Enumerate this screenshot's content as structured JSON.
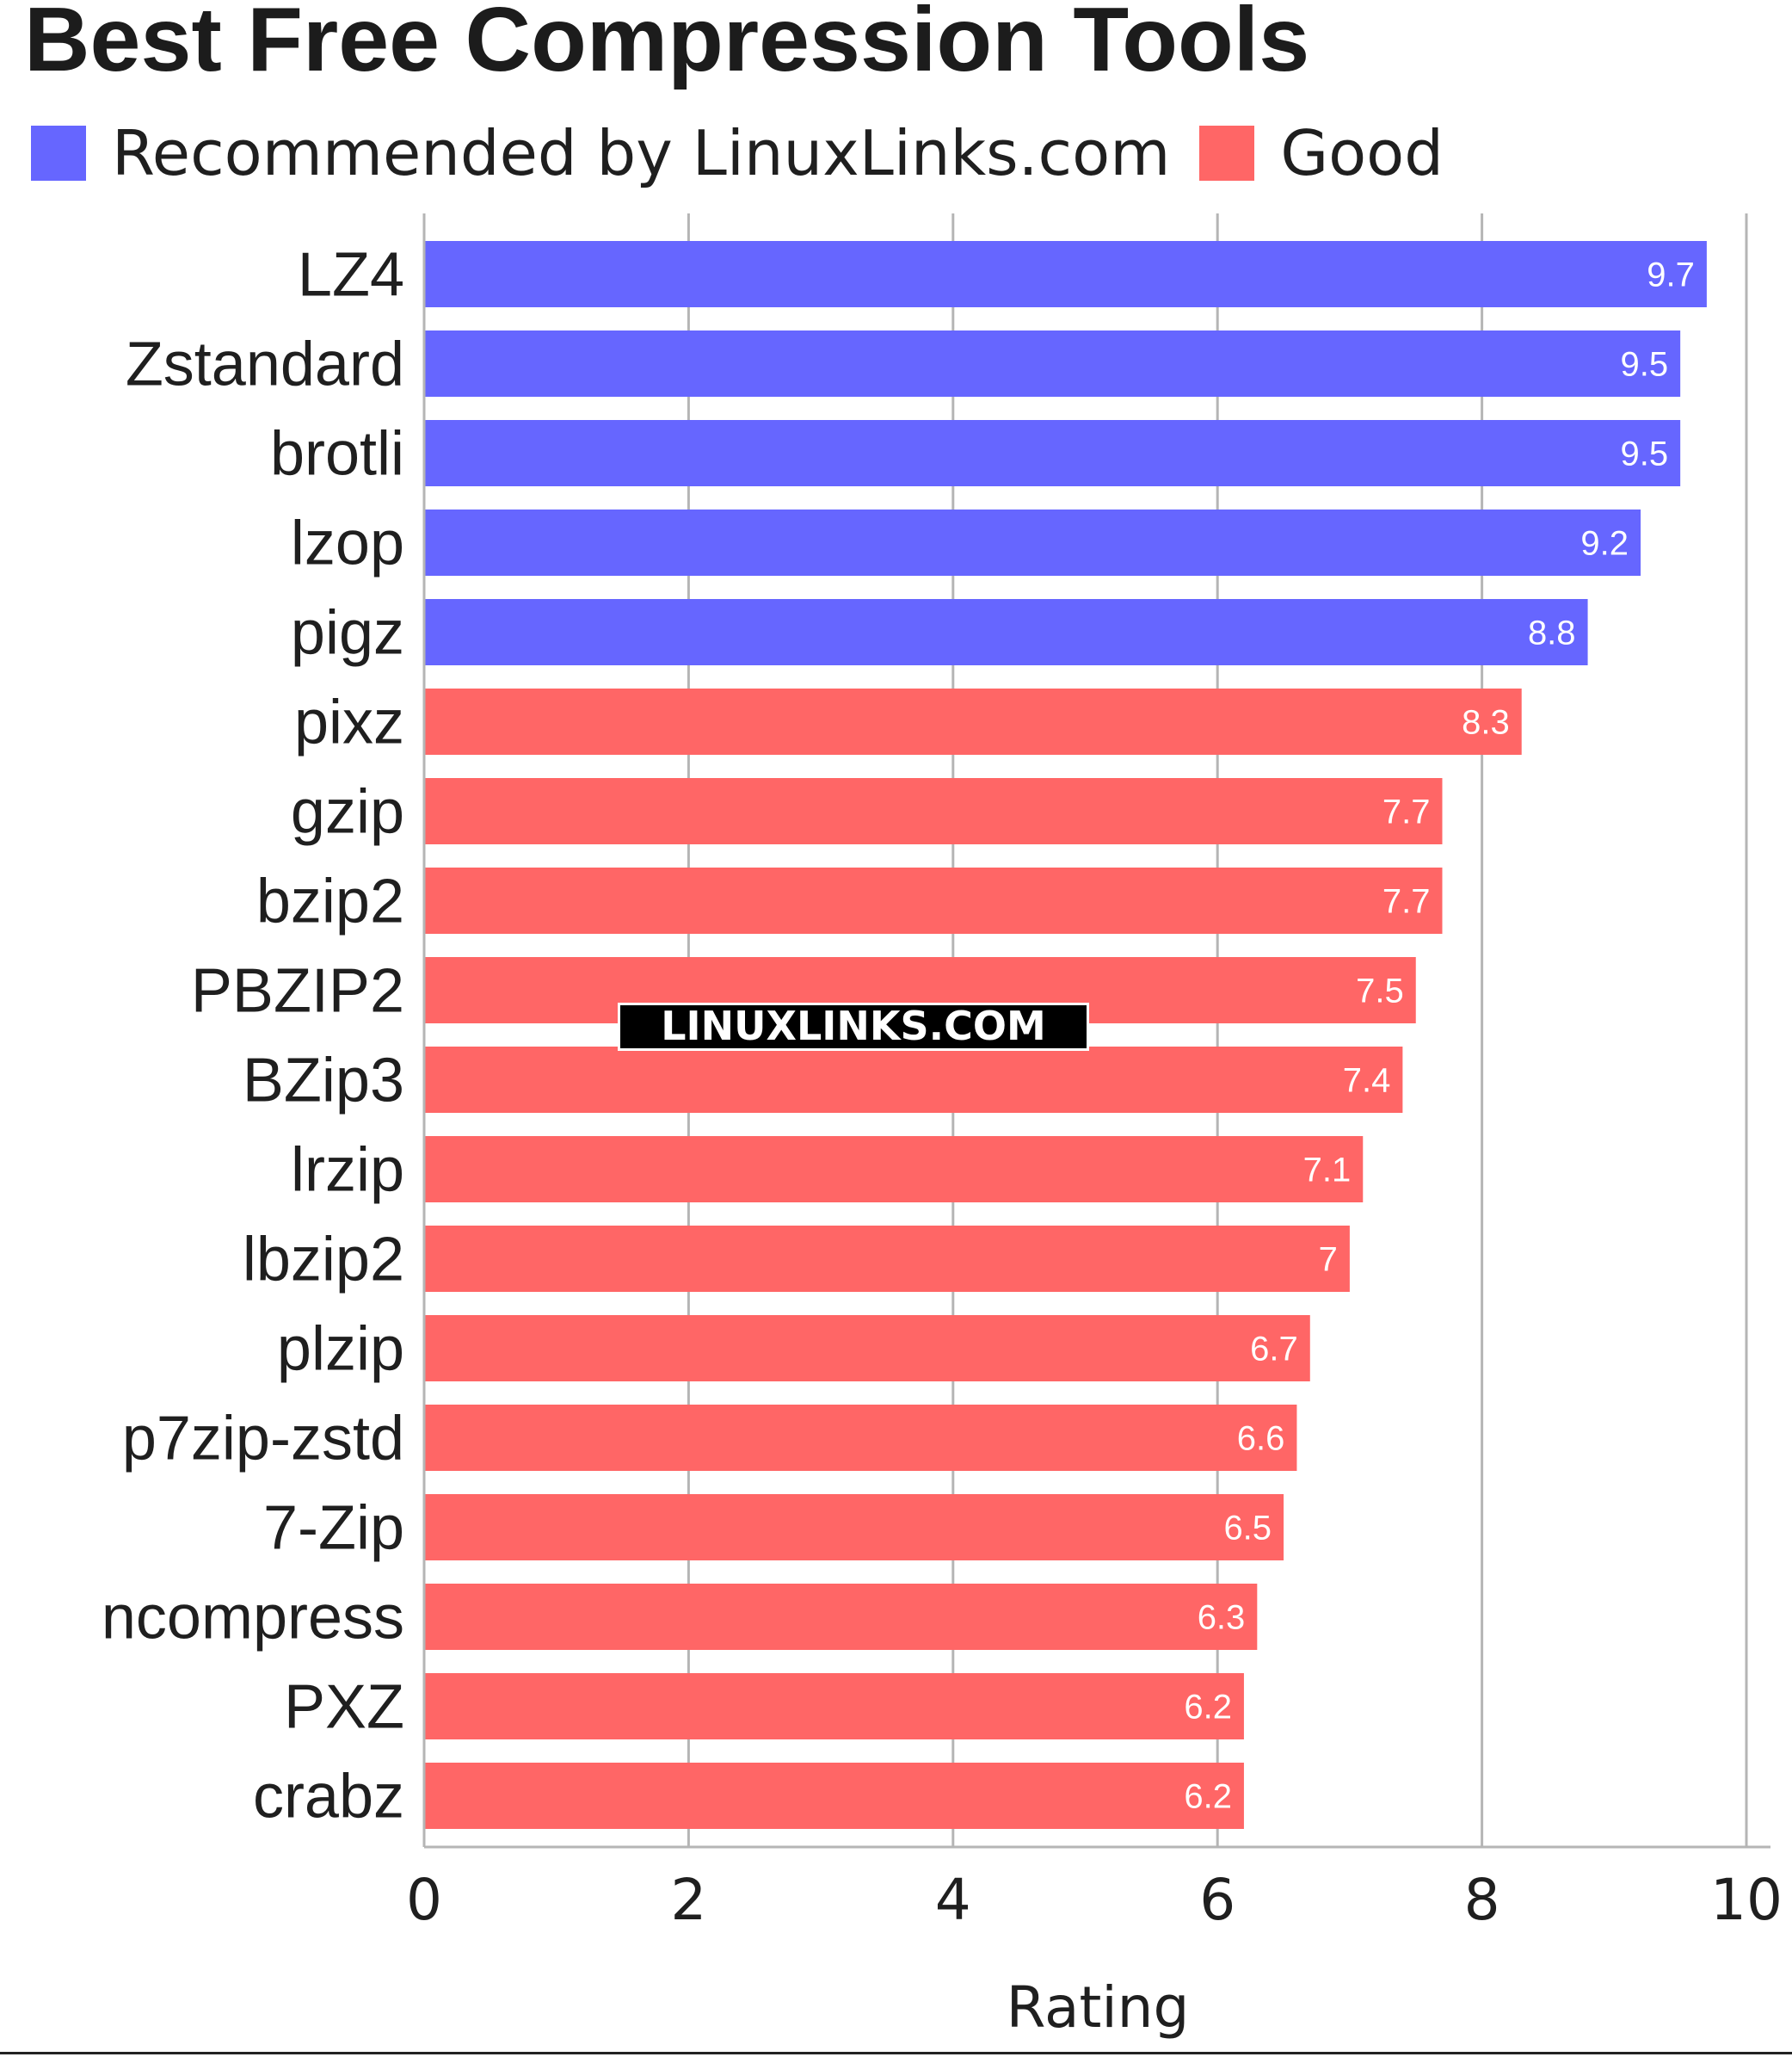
{
  "chart_data": {
    "type": "bar",
    "orientation": "horizontal",
    "title": "Best Free Compression Tools",
    "xlabel": "Rating",
    "ylabel": "",
    "xlim": [
      0,
      10
    ],
    "xticks": [
      "0",
      "2",
      "4",
      "6",
      "8",
      "10"
    ],
    "grid": true,
    "legend_position": "top-left",
    "watermark": "LINUXLINKS.COM",
    "legend": [
      {
        "label": "Recommended by LinuxLinks.com",
        "color": "#6666ff"
      },
      {
        "label": "Good",
        "color": "#ff6666"
      }
    ],
    "categories": [
      "LZ4",
      "Zstandard",
      "brotli",
      "lzop",
      "pigz",
      "pixz",
      "gzip",
      "bzip2",
      "PBZIP2",
      "BZip3",
      "lrzip",
      "lbzip2",
      "plzip",
      "p7zip-zstd",
      "7-Zip",
      "ncompress",
      "PXZ",
      "crabz"
    ],
    "values": [
      9.7,
      9.5,
      9.5,
      9.2,
      8.8,
      8.3,
      7.7,
      7.7,
      7.5,
      7.4,
      7.1,
      7,
      6.7,
      6.6,
      6.5,
      6.3,
      6.2,
      6.2
    ],
    "data_labels": [
      "9.7",
      "9.5",
      "9.5",
      "9.2",
      "8.8",
      "8.3",
      "7.7",
      "7.7",
      "7.5",
      "7.4",
      "7.1",
      "7",
      "6.7",
      "6.6",
      "6.5",
      "6.3",
      "6.2",
      "6.2"
    ],
    "groups": [
      "Recommended by LinuxLinks.com",
      "Recommended by LinuxLinks.com",
      "Recommended by LinuxLinks.com",
      "Recommended by LinuxLinks.com",
      "Recommended by LinuxLinks.com",
      "Good",
      "Good",
      "Good",
      "Good",
      "Good",
      "Good",
      "Good",
      "Good",
      "Good",
      "Good",
      "Good",
      "Good",
      "Good"
    ]
  }
}
